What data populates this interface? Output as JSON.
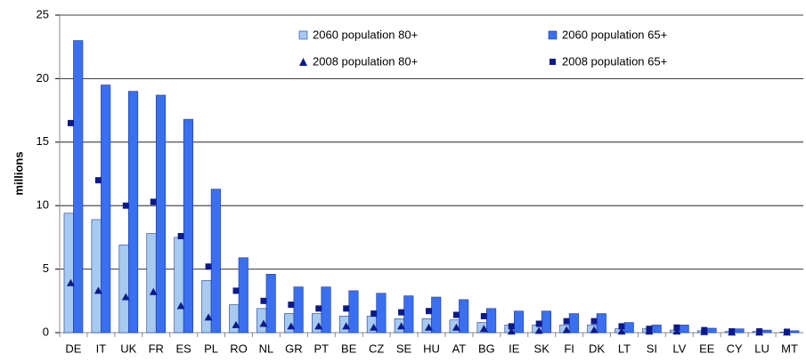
{
  "chart_data": {
    "type": "bar",
    "y_label": "millions",
    "categories": [
      "DE",
      "IT",
      "UK",
      "FR",
      "ES",
      "PL",
      "RO",
      "NL",
      "GR",
      "PT",
      "BE",
      "CZ",
      "SE",
      "HU",
      "AT",
      "BG",
      "IE",
      "SK",
      "FI",
      "DK",
      "LT",
      "SI",
      "LV",
      "EE",
      "CY",
      "LU",
      "MT"
    ],
    "series": [
      {
        "name": "2060 population 80+",
        "type": "bar",
        "color": "#a6caf0",
        "values": [
          9.4,
          8.9,
          6.9,
          7.8,
          7.5,
          4.1,
          2.2,
          1.9,
          1.5,
          1.5,
          1.3,
          1.3,
          1.1,
          1.1,
          1.0,
          0.8,
          0.6,
          0.6,
          0.6,
          0.6,
          0.3,
          0.3,
          0.2,
          0.15,
          0.1,
          0.1,
          0.05
        ]
      },
      {
        "name": "2060 population 65+",
        "type": "bar",
        "color": "#3a6ff0",
        "values": [
          23.0,
          19.5,
          19.0,
          18.7,
          16.8,
          11.3,
          5.9,
          4.6,
          3.6,
          3.6,
          3.3,
          3.1,
          2.9,
          2.8,
          2.6,
          1.9,
          1.7,
          1.7,
          1.5,
          1.5,
          0.8,
          0.6,
          0.6,
          0.35,
          0.3,
          0.2,
          0.15
        ]
      },
      {
        "name": "2008 population 80+",
        "type": "marker",
        "marker": "triangle",
        "color": "#0a1a8c",
        "values": [
          3.9,
          3.3,
          2.8,
          3.2,
          2.1,
          1.2,
          0.6,
          0.7,
          0.5,
          0.5,
          0.5,
          0.4,
          0.5,
          0.4,
          0.4,
          0.3,
          0.1,
          0.15,
          0.2,
          0.2,
          0.1,
          0.1,
          0.1,
          0.05,
          0.02,
          0.02,
          0.02
        ]
      },
      {
        "name": "2008 population 65+",
        "type": "marker",
        "marker": "square",
        "color": "#0a1a8c",
        "values": [
          16.5,
          12.0,
          10.0,
          10.3,
          7.6,
          5.2,
          3.3,
          2.5,
          2.2,
          1.9,
          1.9,
          1.5,
          1.6,
          1.7,
          1.4,
          1.3,
          0.5,
          0.7,
          0.9,
          0.9,
          0.5,
          0.3,
          0.4,
          0.2,
          0.1,
          0.1,
          0.07
        ]
      }
    ],
    "ylim": [
      0,
      25
    ],
    "yticks": [
      0,
      5,
      10,
      15,
      20,
      25
    ],
    "grid": true
  }
}
